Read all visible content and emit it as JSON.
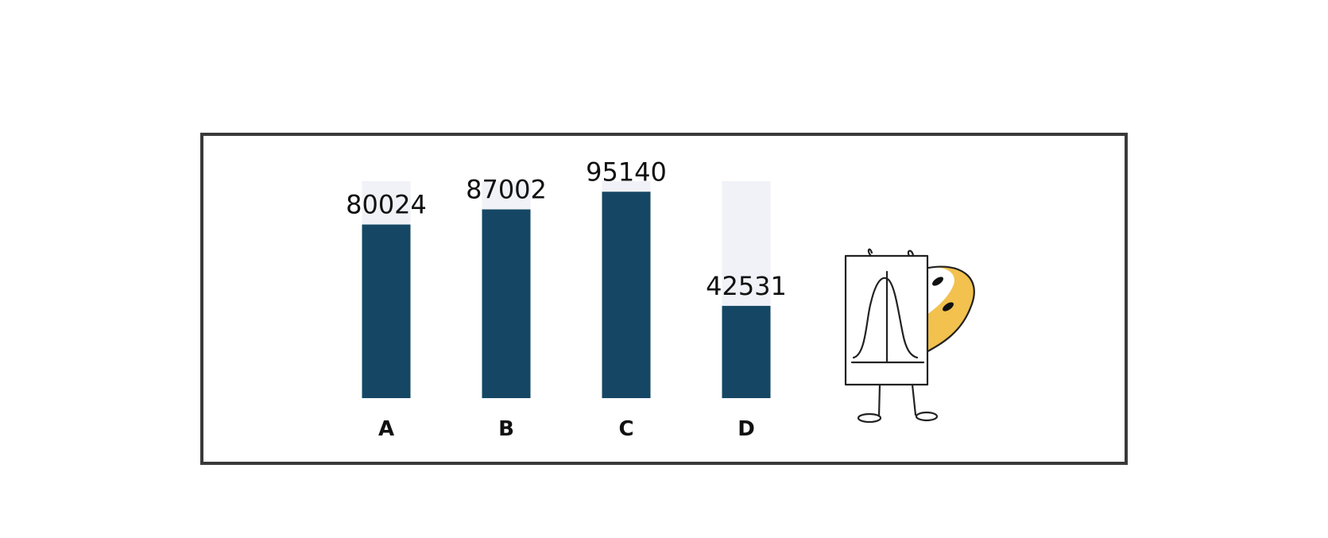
{
  "chart_data": {
    "type": "bar",
    "categories": [
      "A",
      "B",
      "C",
      "D"
    ],
    "values": [
      80024,
      87002,
      95140,
      42531
    ],
    "ylim": [
      0,
      100000
    ],
    "grid": false,
    "legend": "none",
    "bar_color": "#154764",
    "track_color": "#f1f2f7",
    "frame_color": "#3a3a3a"
  },
  "illustration": {
    "icon": "mascot-holding-bell-curve-chart-icon",
    "accent_color": "#f2c14e"
  }
}
